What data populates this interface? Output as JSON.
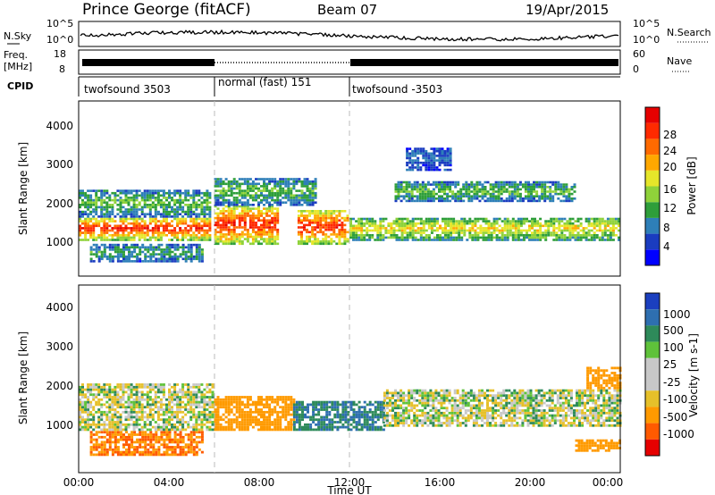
{
  "header": {
    "station": "Prince George (fitACF)",
    "beam": "Beam 07",
    "date": "19/Apr/2015"
  },
  "noise_panel": {
    "left_label": "N.Sky",
    "right_label": "N.Search",
    "left_ticks": [
      "10^5",
      "10^0"
    ],
    "right_ticks": [
      "10^5",
      "10^0"
    ]
  },
  "freq_panel": {
    "left_label_1": "Freq.",
    "left_label_2": "[MHz]",
    "right_label": "Nave",
    "left_ticks": [
      "18",
      "8"
    ],
    "right_ticks": [
      "60",
      "0"
    ]
  },
  "cpid": {
    "label": "CPID",
    "segments": [
      {
        "start_ut": 0,
        "end_ut": 6,
        "name": "twofsound 3503"
      },
      {
        "start_ut": 6,
        "end_ut": 12,
        "name": "normal (fast) 151"
      },
      {
        "start_ut": 12,
        "end_ut": 24,
        "name": "twofsound -3503"
      }
    ]
  },
  "power_panel": {
    "ylabel": "Slant Range [km]",
    "yticks": [
      "1000",
      "2000",
      "3000",
      "4000"
    ],
    "colorbar_label": "Power [dB]",
    "colorbar_ticks": [
      "28",
      "24",
      "20",
      "16",
      "12",
      "8",
      "4"
    ],
    "colors": [
      "#0000ff",
      "#1a3cc0",
      "#2e7fb8",
      "#2e9e3a",
      "#8fd23a",
      "#e6e62a",
      "#ffa800",
      "#ff6a00",
      "#ff2a00",
      "#e60000"
    ]
  },
  "velocity_panel": {
    "ylabel": "Slant Range [km]",
    "yticks": [
      "1000",
      "2000",
      "3000",
      "4000"
    ],
    "colorbar_label": "Velocity [m s-1]",
    "colorbar_ticks": [
      "1000",
      "500",
      "100",
      "25",
      "-25",
      "-100",
      "-500",
      "-1000"
    ],
    "colors": [
      "#1b3fbf",
      "#2e6fb0",
      "#2e8a5a",
      "#5fc23a",
      "#c8c8c8",
      "#c8c8c8",
      "#e6c02a",
      "#ff9a00",
      "#ff5a00",
      "#e60000"
    ]
  },
  "time_axis": {
    "label": "Time UT",
    "ticks": [
      "00:00",
      "04:00",
      "08:00",
      "12:00",
      "16:00",
      "20:00",
      "00:00"
    ]
  },
  "chart_data": {
    "type": "heatmap",
    "x_range_ut_hours": [
      0,
      24
    ],
    "y_range_km": [
      0,
      4500
    ],
    "mode_change_times_ut": [
      6,
      12
    ],
    "power_bands": [
      {
        "t0": 0.0,
        "t1": 5.8,
        "r0": 900,
        "r1": 1500,
        "power_db": 28
      },
      {
        "t0": 0.0,
        "t1": 5.8,
        "r0": 1500,
        "r1": 2200,
        "power_db": 12
      },
      {
        "t0": 0.5,
        "t1": 5.5,
        "r0": 350,
        "r1": 800,
        "power_db": 10
      },
      {
        "t0": 6.0,
        "t1": 8.8,
        "r0": 800,
        "r1": 1800,
        "power_db": 28
      },
      {
        "t0": 9.7,
        "t1": 11.9,
        "r0": 800,
        "r1": 1700,
        "power_db": 28
      },
      {
        "t0": 6.0,
        "t1": 10.5,
        "r0": 1800,
        "r1": 2500,
        "power_db": 12
      },
      {
        "t0": 12.0,
        "t1": 24.0,
        "r0": 900,
        "r1": 1500,
        "power_db": 18
      },
      {
        "t0": 14.0,
        "t1": 22.0,
        "r0": 1900,
        "r1": 2400,
        "power_db": 12
      },
      {
        "t0": 14.5,
        "t1": 16.5,
        "r0": 2700,
        "r1": 3300,
        "power_db": 6
      }
    ],
    "velocity_bands": [
      {
        "t0": 0.5,
        "t1": 5.5,
        "r0": 400,
        "r1": 1000,
        "velocity": -500
      },
      {
        "t0": 0.0,
        "t1": 6.0,
        "r0": 1000,
        "r1": 2100,
        "velocity": 0
      },
      {
        "t0": 6.0,
        "t1": 9.5,
        "r0": 1000,
        "r1": 1800,
        "velocity": -300
      },
      {
        "t0": 9.5,
        "t1": 13.5,
        "r0": 1000,
        "r1": 1700,
        "velocity": 300
      },
      {
        "t0": 13.5,
        "t1": 24.0,
        "r0": 1100,
        "r1": 2000,
        "velocity": 0
      },
      {
        "t0": 22.0,
        "t1": 24.0,
        "r0": 500,
        "r1": 800,
        "velocity": -400
      },
      {
        "t0": 22.5,
        "t1": 24.0,
        "r0": 2000,
        "r1": 2500,
        "velocity": -400
      }
    ]
  }
}
